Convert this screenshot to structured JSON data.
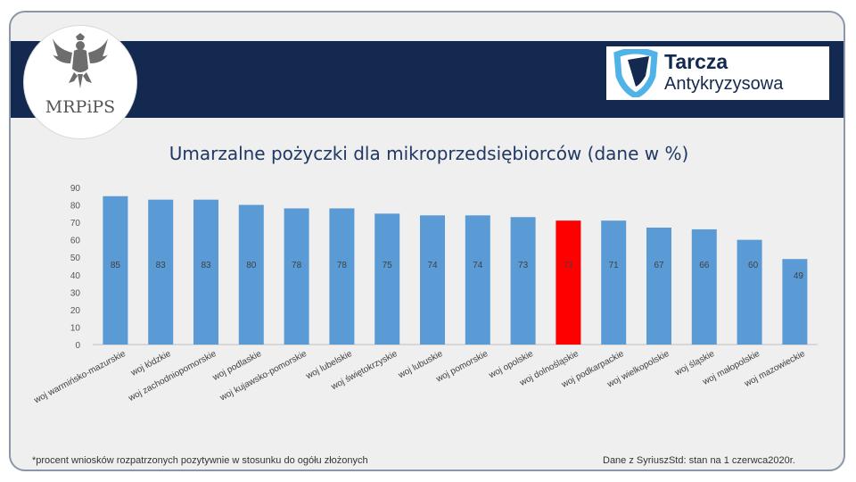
{
  "header": {
    "logo_left_text": "MRPiPS",
    "logo_right_line1": "Tarcza",
    "logo_right_line2": "Antykryzysowa"
  },
  "colors": {
    "bar": "#5b9bd5",
    "highlight": "#ff0000",
    "banner": "#13294f"
  },
  "chart_data": {
    "type": "bar",
    "title": "Umarzalne pożyczki dla mikroprzedsiębiorców (dane w %)",
    "categories": [
      "woj warmińsko-mazurskie",
      "woj łódzkie",
      "woj zachodniopomorskie",
      "woj podlaskie",
      "woj kujawsko-pomorskie",
      "woj lubelskie",
      "woj świętokrzyskie",
      "woj lubuskie",
      "woj pomorskie",
      "woj opolskie",
      "woj dolnośląskie",
      "woj podkarpackie",
      "woj wielkopolskie",
      "woj śląskie",
      "woj małopolskie",
      "woj mazowieckie"
    ],
    "values": [
      85,
      83,
      83,
      80,
      78,
      78,
      75,
      74,
      74,
      73,
      71,
      71,
      67,
      66,
      60,
      49
    ],
    "highlight_index": 10,
    "ylim": [
      0,
      90
    ],
    "yticks": [
      0,
      10,
      20,
      30,
      40,
      50,
      60,
      70,
      80,
      90
    ],
    "xlabel": "",
    "ylabel": ""
  },
  "footer": {
    "note": "*procent wniosków rozpatrzonych pozytywnie w stosunku do ogółu złożonych",
    "source": "Dane z SyriuszStd: stan na 1 czerwca2020r."
  }
}
